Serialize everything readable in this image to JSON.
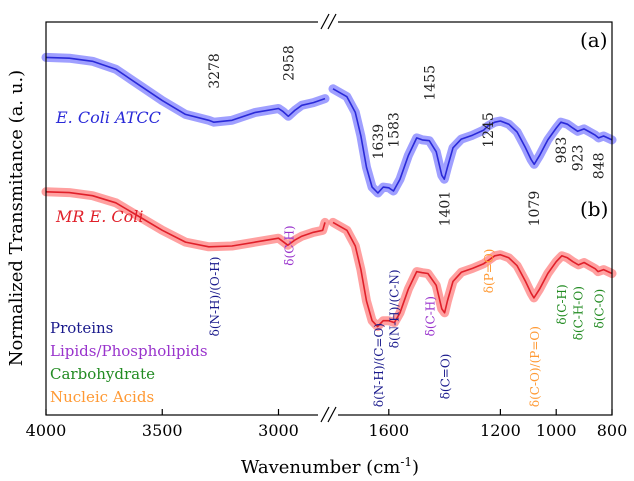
{
  "chart_data": {
    "type": "line",
    "xlabel": "Wavenumber (cm",
    "xlabel_sup": "-1",
    "xlabel_end": ")",
    "ylabel": "Normalized Transmitance (a. u.)",
    "x_axis_break": true,
    "xlim_left": [
      4000,
      2800
    ],
    "xlim_right": [
      1800,
      800
    ],
    "ylim": [
      0,
      1
    ],
    "x_ticks": [
      {
        "value": 4000,
        "label": "4000"
      },
      {
        "value": 3500,
        "label": "3500"
      },
      {
        "value": 3000,
        "label": "3000"
      },
      {
        "value": 1600,
        "label": "1600"
      },
      {
        "value": 1200,
        "label": "1200"
      },
      {
        "value": 1000,
        "label": "1000"
      },
      {
        "value": 800,
        "label": "800"
      }
    ],
    "panel_labels": [
      "(a)",
      "(b)"
    ],
    "series": [
      {
        "name": "E. Coli ATCC",
        "color": "#2a2ad8",
        "band_color": "#7f7fff",
        "points": [
          [
            4000,
            0.91
          ],
          [
            3900,
            0.908
          ],
          [
            3800,
            0.9
          ],
          [
            3700,
            0.88
          ],
          [
            3600,
            0.84
          ],
          [
            3500,
            0.8
          ],
          [
            3400,
            0.765
          ],
          [
            3300,
            0.75
          ],
          [
            3278,
            0.745
          ],
          [
            3200,
            0.75
          ],
          [
            3100,
            0.77
          ],
          [
            3000,
            0.78
          ],
          [
            2980,
            0.772
          ],
          [
            2958,
            0.76
          ],
          [
            2930,
            0.775
          ],
          [
            2900,
            0.788
          ],
          [
            2850,
            0.795
          ],
          [
            2800,
            0.805
          ],
          [
            1800,
            0.83
          ],
          [
            1750,
            0.81
          ],
          [
            1720,
            0.77
          ],
          [
            1700,
            0.71
          ],
          [
            1680,
            0.63
          ],
          [
            1660,
            0.58
          ],
          [
            1639,
            0.565
          ],
          [
            1620,
            0.58
          ],
          [
            1600,
            0.578
          ],
          [
            1583,
            0.57
          ],
          [
            1560,
            0.6
          ],
          [
            1530,
            0.66
          ],
          [
            1500,
            0.705
          ],
          [
            1480,
            0.7
          ],
          [
            1455,
            0.698
          ],
          [
            1430,
            0.67
          ],
          [
            1410,
            0.61
          ],
          [
            1401,
            0.6
          ],
          [
            1390,
            0.63
          ],
          [
            1370,
            0.68
          ],
          [
            1340,
            0.702
          ],
          [
            1300,
            0.712
          ],
          [
            1260,
            0.725
          ],
          [
            1245,
            0.735
          ],
          [
            1220,
            0.745
          ],
          [
            1200,
            0.748
          ],
          [
            1170,
            0.74
          ],
          [
            1140,
            0.72
          ],
          [
            1110,
            0.68
          ],
          [
            1090,
            0.65
          ],
          [
            1079,
            0.638
          ],
          [
            1060,
            0.66
          ],
          [
            1030,
            0.7
          ],
          [
            1000,
            0.73
          ],
          [
            983,
            0.745
          ],
          [
            960,
            0.74
          ],
          [
            940,
            0.73
          ],
          [
            923,
            0.722
          ],
          [
            900,
            0.728
          ],
          [
            880,
            0.72
          ],
          [
            860,
            0.712
          ],
          [
            848,
            0.705
          ],
          [
            830,
            0.71
          ],
          [
            800,
            0.7
          ]
        ]
      },
      {
        "name": "MR E. Coli",
        "color": "#e0202a",
        "band_color": "#ff8080",
        "points": [
          [
            4000,
            0.568
          ],
          [
            3900,
            0.566
          ],
          [
            3800,
            0.558
          ],
          [
            3700,
            0.54
          ],
          [
            3600,
            0.505
          ],
          [
            3500,
            0.47
          ],
          [
            3400,
            0.44
          ],
          [
            3300,
            0.428
          ],
          [
            3200,
            0.43
          ],
          [
            3100,
            0.44
          ],
          [
            3000,
            0.45
          ],
          [
            2960,
            0.432
          ],
          [
            2930,
            0.445
          ],
          [
            2900,
            0.455
          ],
          [
            2850,
            0.465
          ],
          [
            2810,
            0.47
          ],
          [
            2800,
            0.49
          ],
          [
            1800,
            0.49
          ],
          [
            1750,
            0.47
          ],
          [
            1720,
            0.43
          ],
          [
            1700,
            0.37
          ],
          [
            1680,
            0.29
          ],
          [
            1660,
            0.24
          ],
          [
            1640,
            0.225
          ],
          [
            1620,
            0.24
          ],
          [
            1600,
            0.24
          ],
          [
            1580,
            0.235
          ],
          [
            1560,
            0.26
          ],
          [
            1530,
            0.32
          ],
          [
            1500,
            0.365
          ],
          [
            1480,
            0.362
          ],
          [
            1460,
            0.36
          ],
          [
            1430,
            0.33
          ],
          [
            1410,
            0.27
          ],
          [
            1400,
            0.26
          ],
          [
            1390,
            0.29
          ],
          [
            1370,
            0.34
          ],
          [
            1340,
            0.363
          ],
          [
            1300,
            0.373
          ],
          [
            1260,
            0.385
          ],
          [
            1240,
            0.395
          ],
          [
            1220,
            0.405
          ],
          [
            1200,
            0.408
          ],
          [
            1170,
            0.4
          ],
          [
            1140,
            0.38
          ],
          [
            1110,
            0.34
          ],
          [
            1090,
            0.31
          ],
          [
            1080,
            0.298
          ],
          [
            1060,
            0.32
          ],
          [
            1030,
            0.36
          ],
          [
            1000,
            0.39
          ],
          [
            980,
            0.405
          ],
          [
            960,
            0.4
          ],
          [
            940,
            0.39
          ],
          [
            920,
            0.382
          ],
          [
            900,
            0.388
          ],
          [
            880,
            0.38
          ],
          [
            860,
            0.372
          ],
          [
            850,
            0.365
          ],
          [
            830,
            0.37
          ],
          [
            800,
            0.36
          ]
        ]
      }
    ],
    "series_labels": [
      {
        "text": "E. Coli ATCC",
        "color": "#2a2ad8"
      },
      {
        "text": "MR E. Coli",
        "color": "#e0202a"
      }
    ],
    "peak_labels": [
      {
        "text": "3278",
        "x": 3278,
        "y": 0.83
      },
      {
        "text": "2958",
        "x": 2958,
        "y": 0.85
      },
      {
        "text": "1639",
        "x": 1639,
        "y": 0.65
      },
      {
        "text": "1583",
        "x": 1583,
        "y": 0.68
      },
      {
        "text": "1455",
        "x": 1455,
        "y": 0.8
      },
      {
        "text": "1401",
        "x": 1401,
        "y": 0.48
      },
      {
        "text": "1245",
        "x": 1245,
        "y": 0.68
      },
      {
        "text": "1079",
        "x": 1079,
        "y": 0.48
      },
      {
        "text": "983",
        "x": 983,
        "y": 0.64
      },
      {
        "text": "923",
        "x": 923,
        "y": 0.62
      },
      {
        "text": "848",
        "x": 848,
        "y": 0.6
      }
    ],
    "assignments": [
      {
        "text": "δ(N-H)/(O-H)",
        "x": 3278,
        "y": 0.2,
        "color": "#1a1a8c"
      },
      {
        "text": "δ(C-H)",
        "x": 2958,
        "y": 0.38,
        "color": "#9933cc"
      },
      {
        "text": "δ(N-H)/(C=O)",
        "x": 1639,
        "y": 0.02,
        "color": "#1a1a8c"
      },
      {
        "text": "δ(N-H)/(C-N)",
        "x": 1583,
        "y": 0.17,
        "color": "#1a1a8c"
      },
      {
        "text": "δ(C-H)",
        "x": 1455,
        "y": 0.2,
        "color": "#9933cc"
      },
      {
        "text": "δ(C=O)",
        "x": 1401,
        "y": 0.04,
        "color": "#1a1a8c"
      },
      {
        "text": "δ(P=O)",
        "x": 1245,
        "y": 0.31,
        "color": "#ff9933"
      },
      {
        "text": "δ(C-O)/(P=O)",
        "x": 1079,
        "y": 0.02,
        "color": "#ff9933"
      },
      {
        "text": "δ(C-H)",
        "x": 983,
        "y": 0.23,
        "color": "#228b22"
      },
      {
        "text": "δ(C-H-O)",
        "x": 923,
        "y": 0.19,
        "color": "#228b22"
      },
      {
        "text": "δ(C-O)",
        "x": 848,
        "y": 0.22,
        "color": "#228b22"
      }
    ],
    "legend": [
      {
        "label": "Proteins",
        "color": "#1a1a8c"
      },
      {
        "label": "Lipids/Phospholipids",
        "color": "#9933cc"
      },
      {
        "label": "Carbohydrate",
        "color": "#228b22"
      },
      {
        "label": "Nucleic Acids",
        "color": "#ff9933"
      }
    ],
    "legend_position": "bottom-left",
    "grid": false
  }
}
